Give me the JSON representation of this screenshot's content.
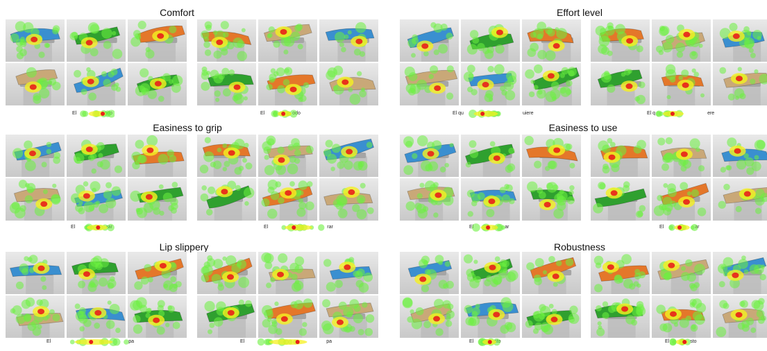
{
  "panels": [
    {
      "title": "Comfort",
      "captions": [
        "El",
        "odo",
        "El",
        "odo"
      ]
    },
    {
      "title": "Effort level",
      "captions": [
        "El qu",
        "uiere",
        "El q",
        "ere"
      ]
    },
    {
      "title": "Easiness to grip",
      "captions": [
        "El",
        "rar",
        "El",
        "rar"
      ]
    },
    {
      "title": "Easiness to use",
      "captions": [
        "El",
        "ar",
        "El",
        "ar"
      ]
    },
    {
      "title": "Lip slippery",
      "captions": [
        "El",
        "pa",
        "El",
        "pa"
      ]
    },
    {
      "title": "Robustness",
      "captions": [
        "El",
        "sto",
        "El",
        "sto"
      ]
    }
  ],
  "colors": {
    "background": "#ffffff",
    "tool_blue": "#3a8fd0",
    "tool_green": "#2fa02f",
    "tool_orange": "#e4772a",
    "tool_wood": "#c9a878",
    "heat_green": "#6cf040",
    "heat_yellow": "#f5f020",
    "heat_red": "#e8201a"
  }
}
